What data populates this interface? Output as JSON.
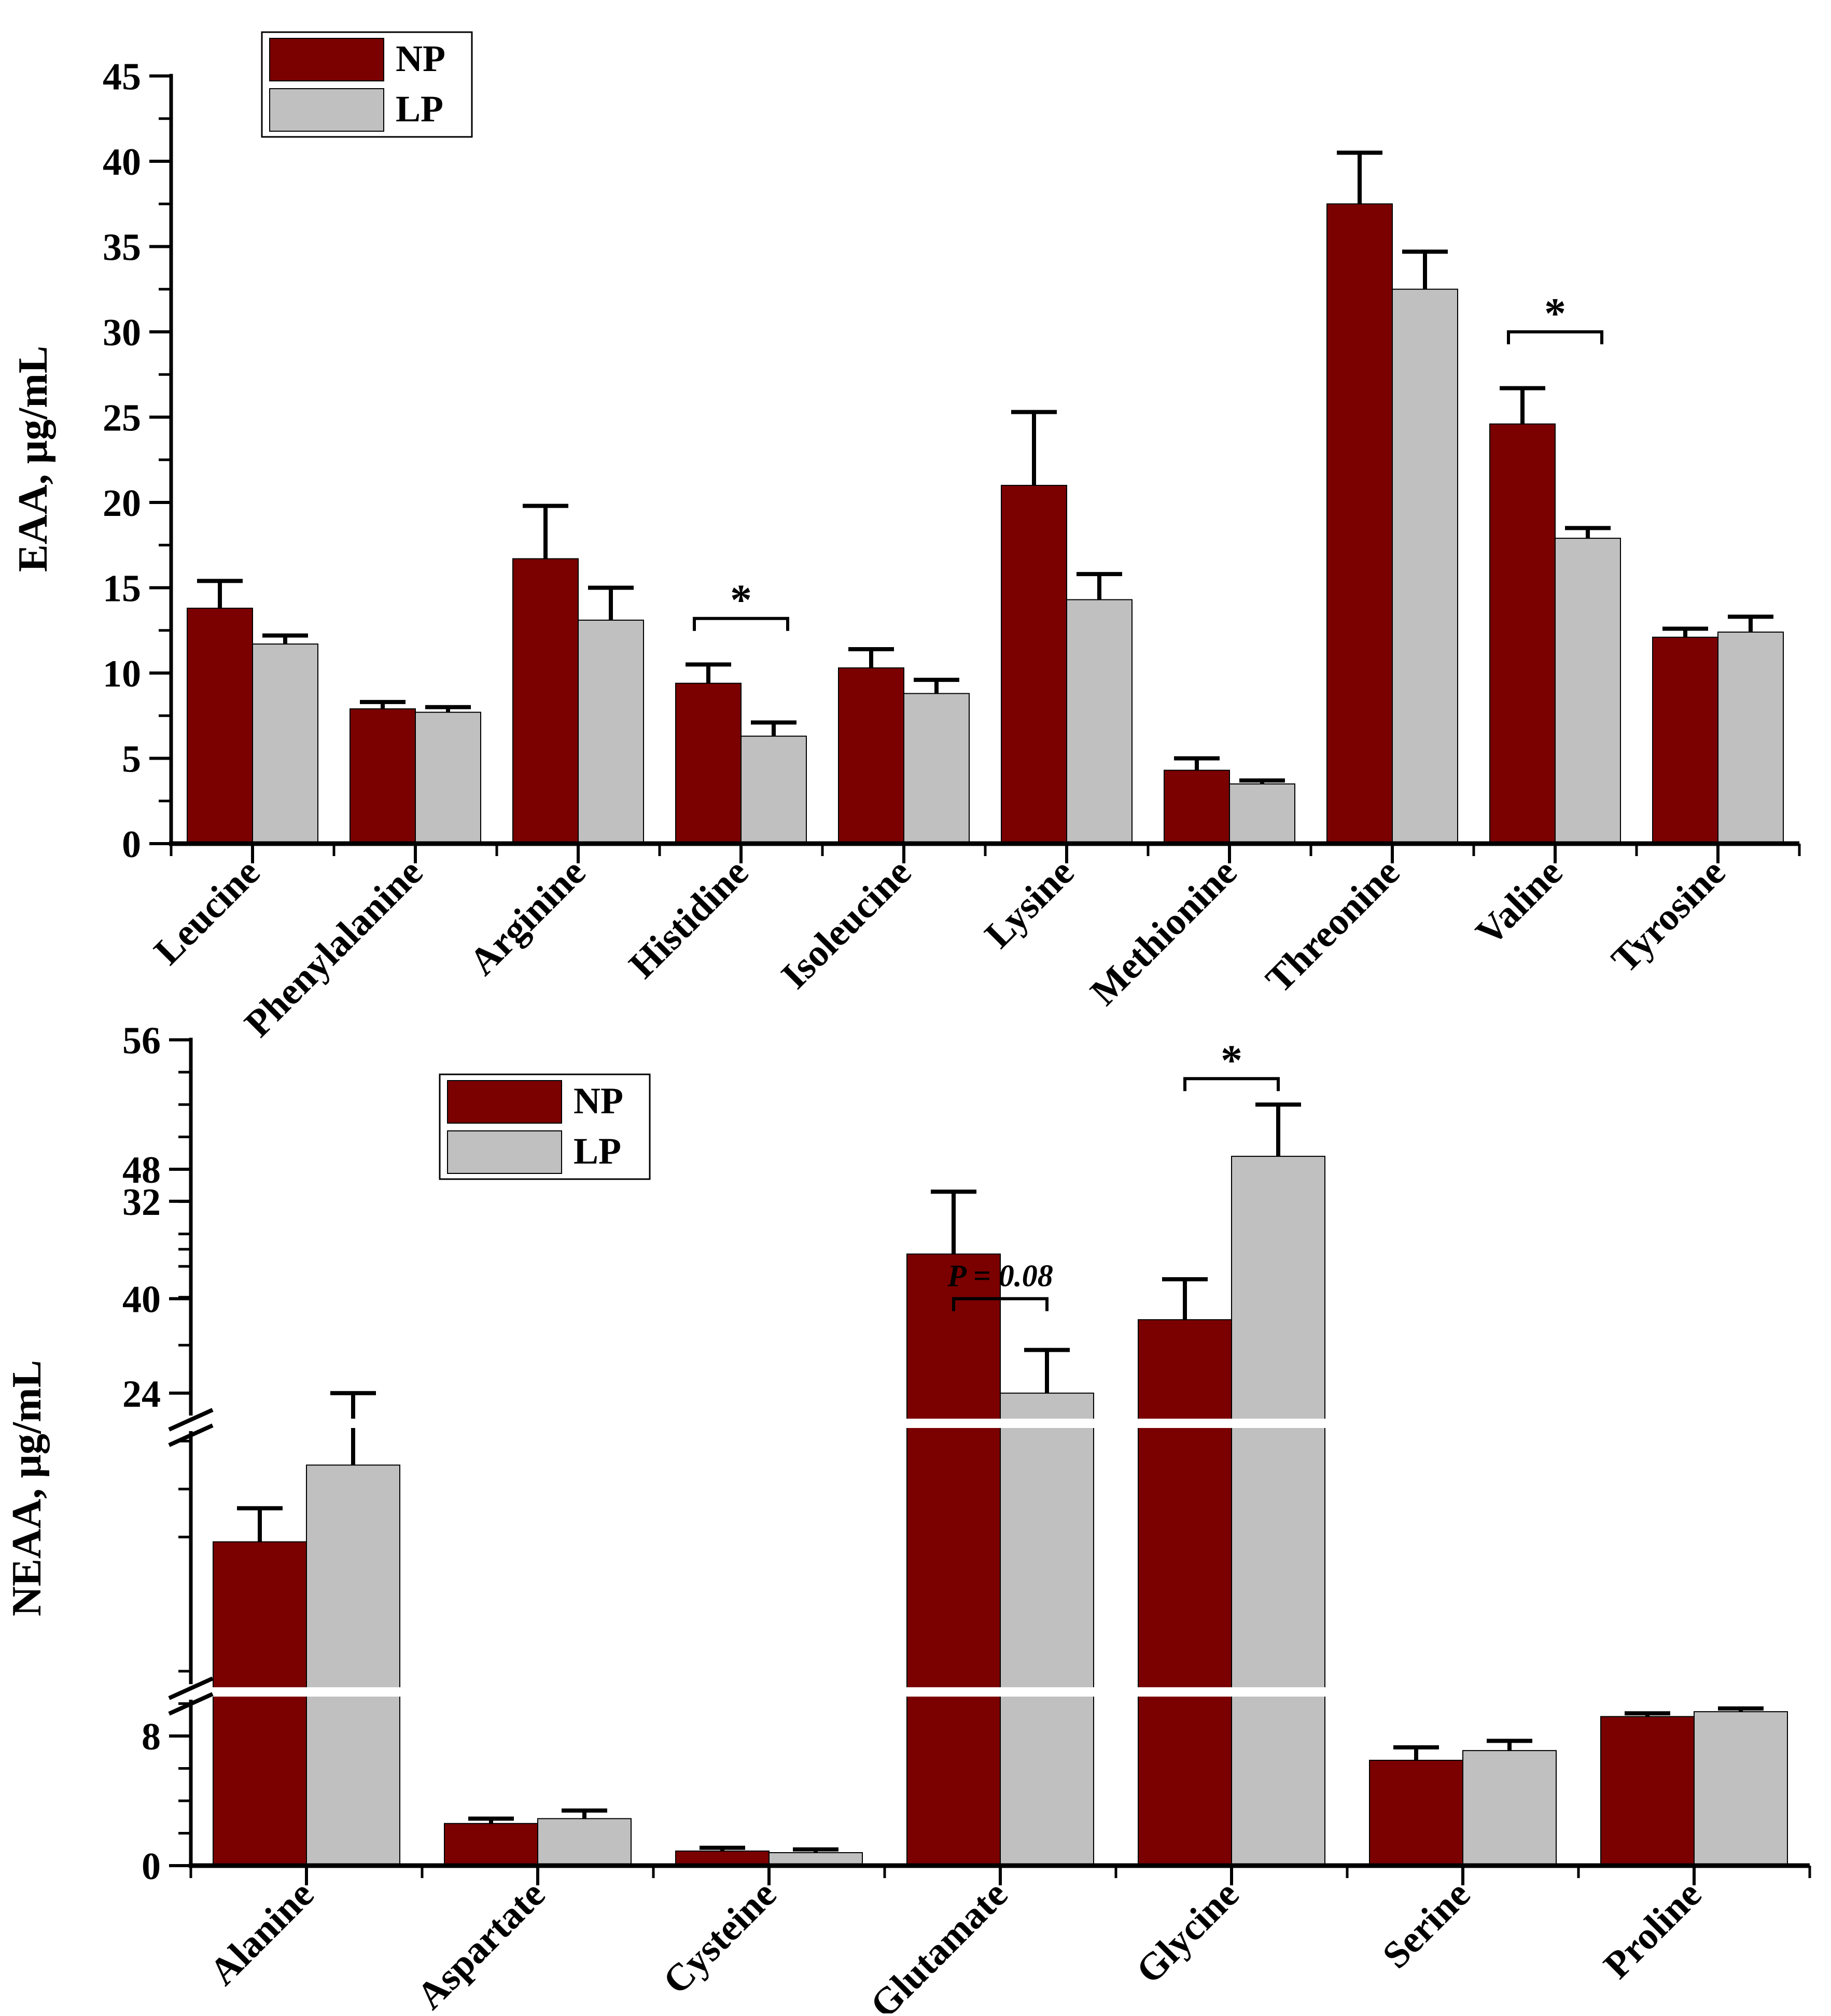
{
  "colors": {
    "np": "#7b0000",
    "lp": "#c0c0c0",
    "axis": "#000000",
    "break": "#ffffff"
  },
  "chart_data": [
    {
      "type": "bar",
      "title": "",
      "ylabel": "EAA, μg/mL",
      "xlabel": "",
      "ylim": [
        0,
        45
      ],
      "yticks": [
        "0",
        "5",
        "10",
        "15",
        "20",
        "25",
        "30",
        "35",
        "40",
        "45"
      ],
      "legend": {
        "position": "top-left",
        "labels": [
          "NP",
          "LP"
        ]
      },
      "categories": [
        "Leucine",
        "Phenylalanine",
        "Arginine",
        "Histidine",
        "Isoleucine",
        "Lysine",
        "Methionine",
        "Threonine",
        "Valine",
        "Tyrosine"
      ],
      "series": [
        {
          "name": "NP",
          "values": [
            13.8,
            7.9,
            16.7,
            9.4,
            10.3,
            21.0,
            4.3,
            37.5,
            24.6,
            12.1
          ],
          "errors": [
            1.6,
            0.4,
            3.1,
            1.1,
            1.1,
            4.3,
            0.7,
            3.0,
            2.1,
            0.5
          ]
        },
        {
          "name": "LP",
          "values": [
            11.7,
            7.7,
            13.1,
            6.3,
            8.8,
            14.3,
            3.5,
            32.5,
            17.9,
            12.4
          ],
          "errors": [
            0.5,
            0.3,
            1.9,
            0.8,
            0.8,
            1.5,
            0.2,
            2.2,
            0.6,
            0.9
          ]
        }
      ],
      "annotations": [
        {
          "text": "*",
          "category": "Histidine",
          "y": 13.2
        },
        {
          "text": "*",
          "category": "Valine",
          "y": 30.0
        }
      ]
    },
    {
      "type": "bar",
      "title": "",
      "ylabel": "NEAA, μg/mL",
      "xlabel": "",
      "axis_segments": [
        {
          "range": [
            0,
            13
          ]
        },
        {
          "range": [
            16,
            33
          ]
        },
        {
          "range": [
            38,
            56
          ]
        }
      ],
      "yticks": [
        "0",
        "8",
        "24",
        "32",
        "40",
        "48",
        "56"
      ],
      "legend": {
        "position": "top-left",
        "labels": [
          "NP",
          "LP"
        ]
      },
      "categories": [
        "Alanine",
        "Aspartate",
        "Cysteine",
        "Glutamate",
        "Glycine",
        "Serine",
        "Proline"
      ],
      "series": [
        {
          "name": "NP",
          "values": [
            17.8,
            2.6,
            0.9,
            29.8,
            38.7,
            6.5,
            9.2
          ],
          "errors": [
            1.4,
            0.3,
            0.2,
            2.6,
            2.5,
            0.8,
            0.2
          ]
        },
        {
          "name": "LP",
          "values": [
            21.0,
            2.9,
            0.8,
            24.0,
            48.8,
            7.1,
            9.5
          ],
          "errors": [
            3.0,
            0.5,
            0.2,
            1.8,
            3.2,
            0.6,
            0.2
          ]
        }
      ],
      "annotations": [
        {
          "text": "P = 0.08",
          "category": "Glutamate",
          "y": 40.0
        },
        {
          "text": "*",
          "category": "Glycine",
          "y": 53.6
        }
      ]
    }
  ]
}
